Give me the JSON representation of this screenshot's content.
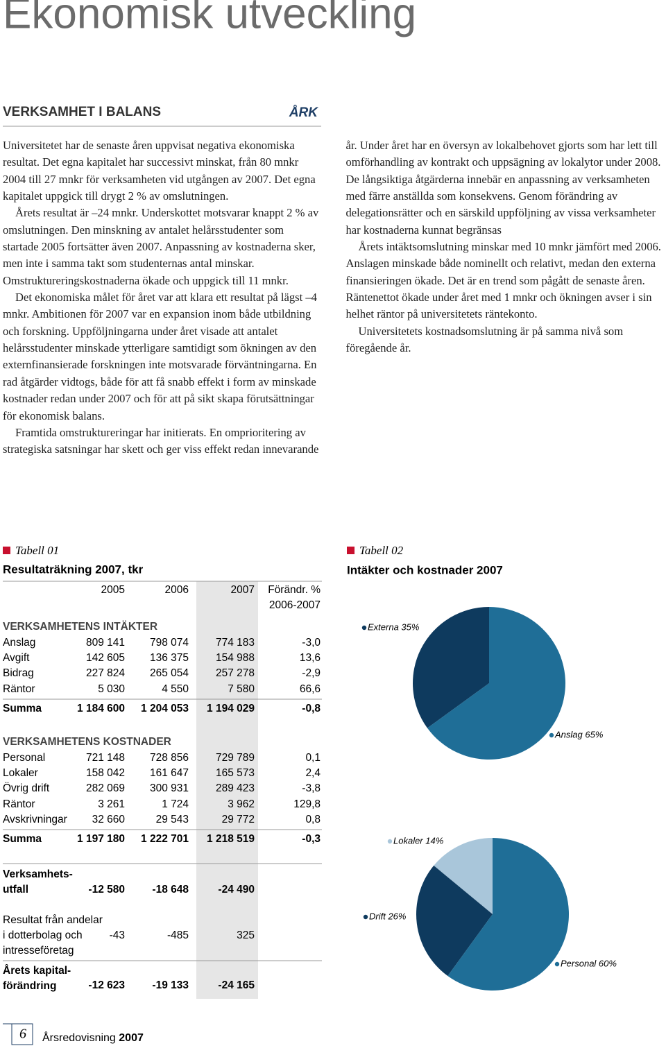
{
  "header": {
    "title": "Ekonomisk utveckling"
  },
  "section": {
    "heading": "VERKSAMHET I BALANS",
    "tag": "ÅRK",
    "paragraphs": [
      "Universitetet har de senaste åren uppvisat negativa ekonomiska resultat. Det egna kapitalet har successivt minskat, från 80 mnkr 2004 till 27 mnkr för verksamheten vid utgången av 2007. Det egna kapitalet uppgick till drygt 2 % av omslutningen.",
      "Årets resultat är –24 mnkr. Underskottet motsvarar knappt 2 % av omslutningen. Den minskning av antalet helårsstudenter som startade 2005 fortsätter även 2007. Anpassning av kostnaderna sker, men inte i samma takt som studenternas antal minskar. Omstruktureringskostnaderna ökade och uppgick till 11 mnkr.",
      "Det ekonomiska målet för året var att klara ett resultat på lägst –4 mnkr. Ambitionen för 2007 var en expansion inom både utbildning och forskning. Uppföljningarna under året visade att antalet helårsstudenter minskade ytterligare samtidigt som ökningen av den externfinansierade forskningen inte motsvarade förväntningarna. En rad åtgärder vidtogs, både för att få snabb effekt i form av minskade kostnader redan under 2007 och för att på sikt skapa förutsättningar för ekonomisk balans.",
      "Framtida omstruktureringar har initierats. En omprioritering av strategiska satsningar har skett och ger viss effekt redan innevarande år. Under året har en översyn av lokalbehovet gjorts som har lett till omförhandling av kontrakt och uppsägning av lokalytor under 2008. De långsiktiga åtgärderna innebär en anpassning av verksamheten med färre anställda som konsekvens. Genom förändring av delegationsrätter och en särskild uppföljning av vissa verksamheter har kostnaderna kunnat begränsas",
      "Årets intäktsomslutning minskar med 10 mnkr jämfört med 2006. Anslagen minskade både nominellt och relativt, medan den externa finansieringen ökade. Det är en trend som pågått de senaste åren. Räntenettot ökade under året med 1 mnkr och ökningen avser i sin helhet räntor på universitetets räntekonto.",
      "Universitetets kostnadsomslutning är på samma nivå som föregående år."
    ]
  },
  "table": {
    "label": "Tabell 01",
    "title": "Resultaträkning 2007, tkr",
    "columns": [
      "2005",
      "2006",
      "2007",
      "Förändr. %"
    ],
    "change_period": "2006-2007",
    "rows": [
      {
        "section": "VERKSAMHETENS INTÄKTER"
      },
      {
        "label": [
          "Anslag"
        ],
        "cells": [
          "809 141",
          "798 074",
          "774 183",
          "-3,0"
        ]
      },
      {
        "label": [
          "Avgift"
        ],
        "cells": [
          "142 605",
          "136 375",
          "154 988",
          "13,6"
        ]
      },
      {
        "label": [
          "Bidrag"
        ],
        "cells": [
          "227 824",
          "265 054",
          "257 278",
          "-2,9"
        ]
      },
      {
        "label": [
          "Räntor"
        ],
        "cells": [
          "5 030",
          "4 550",
          "7 580",
          "66,6"
        ]
      },
      {
        "label": [
          "Summa"
        ],
        "cells": [
          "1 184 600",
          "1 204 053",
          "1 194 029",
          "-0,8"
        ]
      },
      {
        "section": "VERKSAMHETENS KOSTNADER"
      },
      {
        "label": [
          "Personal"
        ],
        "cells": [
          "721 148",
          "728 856",
          "729 789",
          "0,1"
        ]
      },
      {
        "label": [
          "Lokaler"
        ],
        "cells": [
          "158 042",
          "161 647",
          "165 573",
          "2,4"
        ]
      },
      {
        "label": [
          "Övrig drift"
        ],
        "cells": [
          "282 069",
          "300 931",
          "289 423",
          "-3,8"
        ]
      },
      {
        "label": [
          "Räntor"
        ],
        "cells": [
          "3 261",
          "1 724",
          "3 962",
          "129,8"
        ]
      },
      {
        "label": [
          "Avskrivningar"
        ],
        "cells": [
          "32 660",
          "29 543",
          "29 772",
          "0,8"
        ]
      },
      {
        "label": [
          "Summa"
        ],
        "cells": [
          "1 197 180",
          "1 222 701",
          "1 218 519",
          "-0,3"
        ]
      },
      {
        "label": [
          "Verksamhets-",
          "utfall"
        ],
        "cells": [
          "-12 580",
          "-18 648",
          "-24 490"
        ]
      },
      {
        "label": [
          "Resultat från andelar",
          "i dotterbolag och",
          "intresseföretag"
        ],
        "cells": [
          "-43",
          "-485",
          "325"
        ]
      },
      {
        "label": [
          "Årets kapital-",
          "förändring"
        ],
        "cells": [
          "-12 623",
          "-19 133",
          "-24 165"
        ]
      }
    ]
  },
  "figure": {
    "label": "Tabell 02",
    "title": "Intäkter och kostnader 2007"
  },
  "chart_data": [
    {
      "type": "pie",
      "values": [
        35,
        65
      ],
      "value_labels": [
        "Externa 35%",
        "Anslag 65%"
      ],
      "colors": [
        "#0e3a5e",
        "#1f6e97"
      ]
    },
    {
      "type": "pie",
      "values": [
        14,
        26,
        60
      ],
      "value_labels": [
        "Lokaler 14%",
        "Drift 26%",
        "Personal 60%"
      ],
      "colors": [
        "#a9c6da",
        "#0e3a5e",
        "#1f6e97"
      ]
    }
  ],
  "footer": {
    "page": "6",
    "publication": "Årsredovisning",
    "year": "2007"
  }
}
